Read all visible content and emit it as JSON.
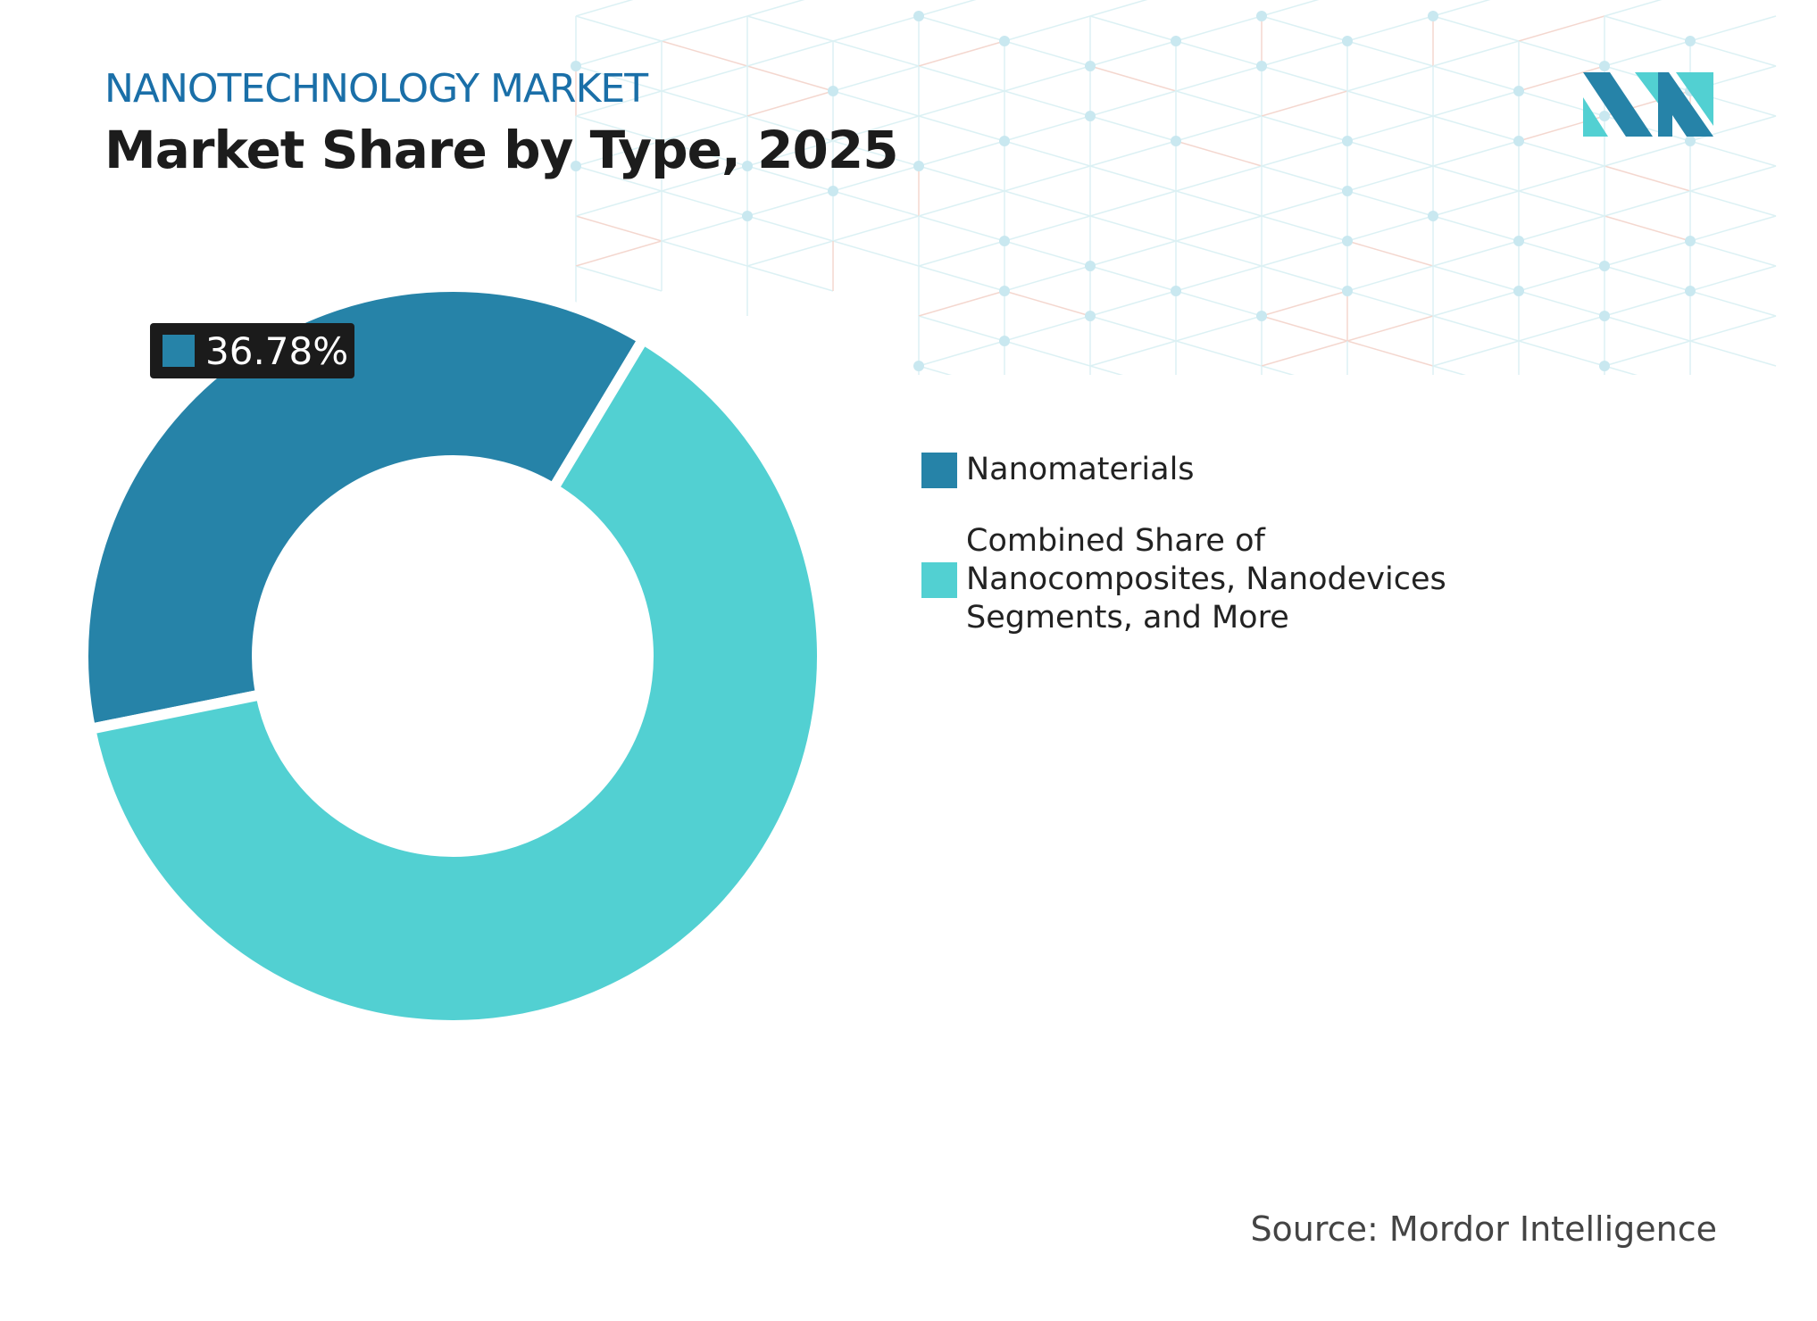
{
  "header": {
    "kicker": "NANOTECHNOLOGY MARKET",
    "title": "Market Share by Type, 2025"
  },
  "source": "Source: Mordor Intelligence",
  "colors": {
    "accent": "#1a6fa8",
    "nanomaterials": "#2683a8",
    "combined": "#52d0d2",
    "label_bg": "#1b1b1b"
  },
  "logo": {
    "text": "MI"
  },
  "chart_data": {
    "type": "pie",
    "style": "donut",
    "title": "Market Share by Type, 2025",
    "unit": "%",
    "categories": [
      "Nanomaterials",
      "Combined Share of Nanocomposites, Nanodevices Segments, and More"
    ],
    "values": [
      36.78,
      63.22
    ],
    "data_labels": [
      "36.78%"
    ],
    "legend": "right",
    "legend_lines": [
      [
        "Nanomaterials"
      ],
      [
        "Combined Share of",
        "Nanocomposites, Nanodevices",
        "Segments, and More"
      ]
    ]
  }
}
